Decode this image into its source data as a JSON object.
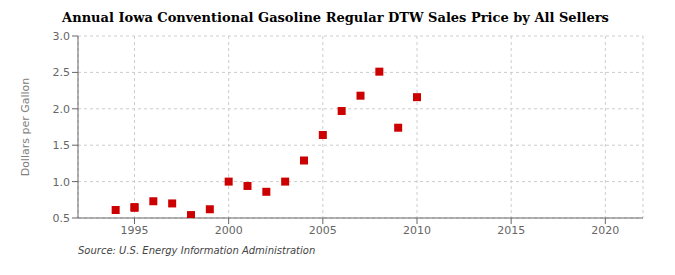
{
  "chart_data": {
    "type": "scatter",
    "title": "Annual Iowa Conventional Gasoline Regular DTW Sales Price by All Sellers",
    "y_label": "Dollars per Gallon",
    "annotations": [
      "Source: U.S. Energy Information Administration"
    ],
    "x": [
      1994,
      1995,
      1995,
      1996,
      1997,
      1998,
      1999,
      2000,
      2001,
      2002,
      2003,
      2004,
      2005,
      2006,
      2007,
      2008,
      2009,
      2010
    ],
    "values": [
      0.61,
      0.64,
      0.65,
      0.73,
      0.7,
      0.54,
      0.62,
      1.0,
      0.94,
      0.86,
      1.0,
      1.29,
      1.64,
      1.97,
      2.18,
      2.51,
      1.74,
      2.16
    ],
    "color": "#cc0000",
    "marker": "square",
    "xlim": [
      1992,
      2022
    ],
    "ylim": [
      0.5,
      3.0
    ],
    "xticks": [
      1995,
      2000,
      2005,
      2010,
      2015,
      2020
    ],
    "yticks": [
      0.5,
      {
        "value": 1,
        "label": "1.0"
      },
      1.5,
      {
        "value": 2,
        "label": "2.0"
      },
      2.5,
      {
        "value": 3,
        "label": "3.0"
      }
    ],
    "grid": true
  }
}
